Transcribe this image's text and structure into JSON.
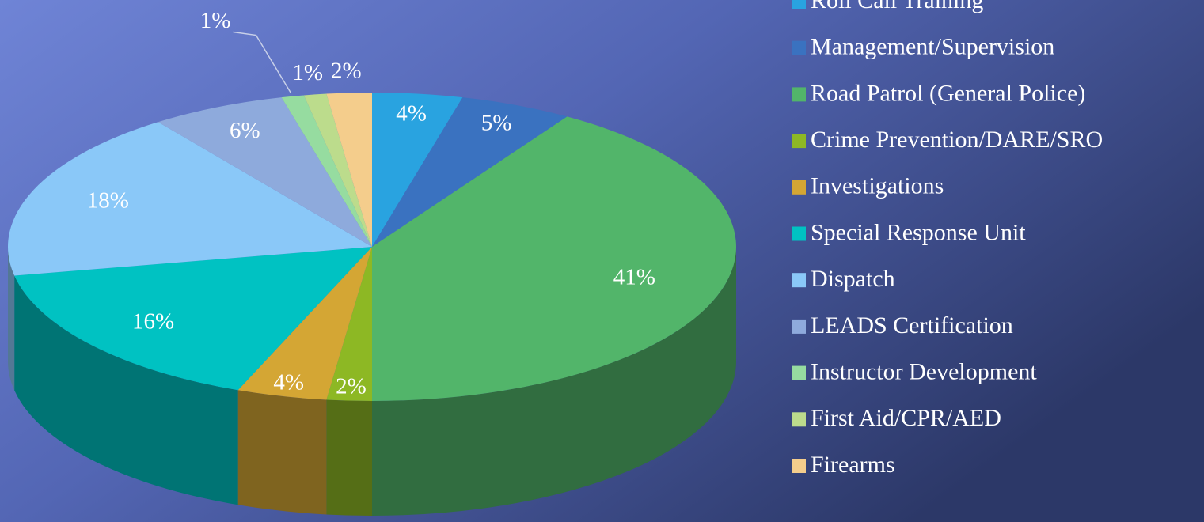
{
  "chart_data": {
    "type": "pie",
    "categories": [
      "Roll Call Training",
      "Management/Supervision",
      "Road Patrol (General Police)",
      "Crime Prevention/DARE/SRO",
      "Investigations",
      "Special Response Unit",
      "Dispatch",
      "LEADS Certification",
      "Instructor Development",
      "First Aid/CPR/AED",
      "Firearms"
    ],
    "values": [
      4,
      5,
      41,
      2,
      4,
      16,
      18,
      6,
      1,
      1,
      2
    ],
    "value_labels": [
      "4%",
      "5%",
      "41%",
      "2%",
      "4%",
      "16%",
      "18%",
      "6%",
      "1%",
      "1%",
      "2%"
    ],
    "colors": [
      "#29a3e0",
      "#3a72c0",
      "#52b56a",
      "#8db824",
      "#d4a634",
      "#00c2c2",
      "#8ac8f8",
      "#8eaadc",
      "#96dca0",
      "#bcdc8c",
      "#f4cd8c"
    ],
    "legend": "right"
  }
}
